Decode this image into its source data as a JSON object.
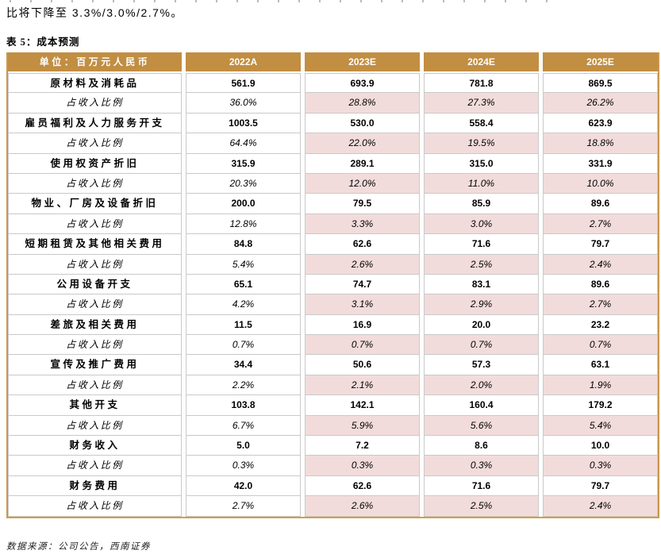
{
  "page": {
    "intro_text": "比将下降至 3.3%/3.0%/2.7%。",
    "table_caption": "表 5：成本预测",
    "source_note": "数据来源：公司公告，西南证券"
  },
  "colors": {
    "header_gold": "#C18E42",
    "border_gold": "#C9984F",
    "bottom_gold": "#D79E3F",
    "ratio_pink": "#F2DCDB",
    "grid_gray": "#C9C9C9"
  },
  "table": {
    "unit_header": "单位：百万元人民币",
    "columns": [
      "2022A",
      "2023E",
      "2024E",
      "2025E"
    ],
    "ratio_label": "占收入比例",
    "rows": [
      {
        "label": "原材料及消耗品",
        "is_ratio": false,
        "values": [
          "561.9",
          "693.9",
          "781.8",
          "869.5"
        ]
      },
      {
        "label": "占收入比例",
        "is_ratio": true,
        "values": [
          "36.0%",
          "28.8%",
          "27.3%",
          "26.2%"
        ]
      },
      {
        "label": "雇员福利及人力服务开支",
        "is_ratio": false,
        "values": [
          "1003.5",
          "530.0",
          "558.4",
          "623.9"
        ]
      },
      {
        "label": "占收入比例",
        "is_ratio": true,
        "values": [
          "64.4%",
          "22.0%",
          "19.5%",
          "18.8%"
        ]
      },
      {
        "label": "使用权资产折旧",
        "is_ratio": false,
        "values": [
          "315.9",
          "289.1",
          "315.0",
          "331.9"
        ]
      },
      {
        "label": "占收入比例",
        "is_ratio": true,
        "values": [
          "20.3%",
          "12.0%",
          "11.0%",
          "10.0%"
        ]
      },
      {
        "label": "物业、厂房及设备折旧",
        "is_ratio": false,
        "values": [
          "200.0",
          "79.5",
          "85.9",
          "89.6"
        ]
      },
      {
        "label": "占收入比例",
        "is_ratio": true,
        "values": [
          "12.8%",
          "3.3%",
          "3.0%",
          "2.7%"
        ]
      },
      {
        "label": "短期租赁及其他相关费用",
        "is_ratio": false,
        "values": [
          "84.8",
          "62.6",
          "71.6",
          "79.7"
        ]
      },
      {
        "label": "占收入比例",
        "is_ratio": true,
        "values": [
          "5.4%",
          "2.6%",
          "2.5%",
          "2.4%"
        ]
      },
      {
        "label": "公用设备开支",
        "is_ratio": false,
        "values": [
          "65.1",
          "74.7",
          "83.1",
          "89.6"
        ]
      },
      {
        "label": "占收入比例",
        "is_ratio": true,
        "values": [
          "4.2%",
          "3.1%",
          "2.9%",
          "2.7%"
        ]
      },
      {
        "label": "差旅及相关费用",
        "is_ratio": false,
        "values": [
          "11.5",
          "16.9",
          "20.0",
          "23.2"
        ]
      },
      {
        "label": "占收入比例",
        "is_ratio": true,
        "values": [
          "0.7%",
          "0.7%",
          "0.7%",
          "0.7%"
        ]
      },
      {
        "label": "宣传及推广费用",
        "is_ratio": false,
        "values": [
          "34.4",
          "50.6",
          "57.3",
          "63.1"
        ]
      },
      {
        "label": "占收入比例",
        "is_ratio": true,
        "values": [
          "2.2%",
          "2.1%",
          "2.0%",
          "1.9%"
        ]
      },
      {
        "label": "其他开支",
        "is_ratio": false,
        "values": [
          "103.8",
          "142.1",
          "160.4",
          "179.2"
        ]
      },
      {
        "label": "占收入比例",
        "is_ratio": true,
        "values": [
          "6.7%",
          "5.9%",
          "5.6%",
          "5.4%"
        ]
      },
      {
        "label": "财务收入",
        "is_ratio": false,
        "values": [
          "5.0",
          "7.2",
          "8.6",
          "10.0"
        ]
      },
      {
        "label": "占收入比例",
        "is_ratio": true,
        "values": [
          "0.3%",
          "0.3%",
          "0.3%",
          "0.3%"
        ]
      },
      {
        "label": "财务费用",
        "is_ratio": false,
        "values": [
          "42.0",
          "62.6",
          "71.6",
          "79.7"
        ]
      },
      {
        "label": "占收入比例",
        "is_ratio": true,
        "values": [
          "2.7%",
          "2.6%",
          "2.5%",
          "2.4%"
        ]
      }
    ]
  }
}
